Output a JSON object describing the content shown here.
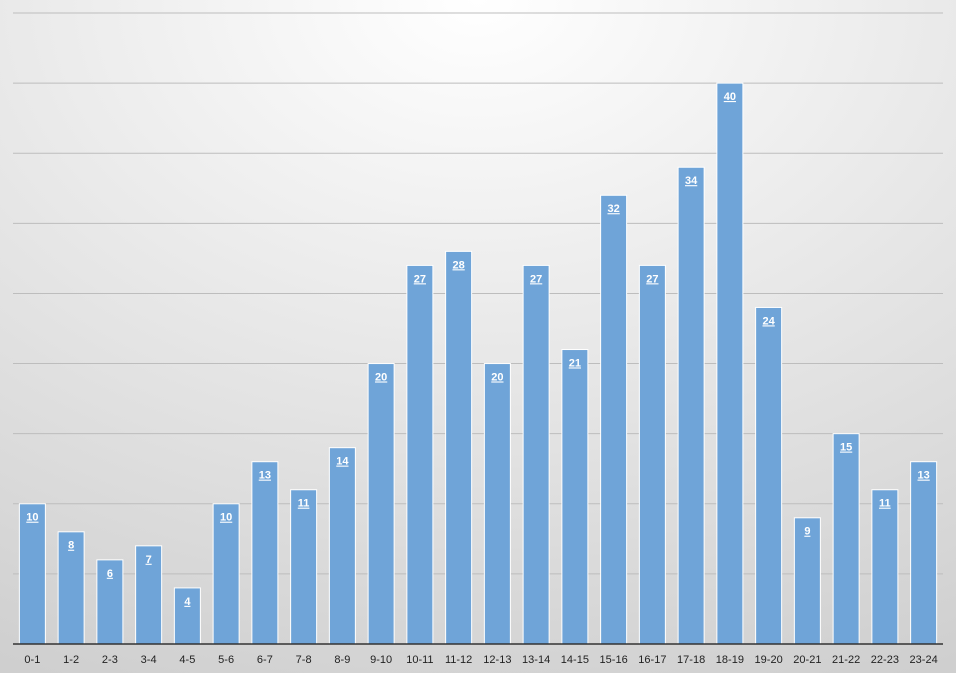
{
  "chart_data": {
    "type": "bar",
    "categories": [
      "0-1",
      "1-2",
      "2-3",
      "3-4",
      "4-5",
      "5-6",
      "6-7",
      "7-8",
      "8-9",
      "9-10",
      "10-11",
      "11-12",
      "12-13",
      "13-14",
      "14-15",
      "15-16",
      "16-17",
      "17-18",
      "18-19",
      "19-20",
      "20-21",
      "21-22",
      "22-23",
      "23-24"
    ],
    "values": [
      10,
      8,
      6,
      7,
      4,
      10,
      13,
      11,
      14,
      20,
      27,
      28,
      20,
      27,
      21,
      32,
      27,
      34,
      40,
      24,
      9,
      15,
      11,
      13
    ],
    "color": "#6fa4d8",
    "ylim": [
      0,
      45
    ],
    "yticks": [
      0,
      5,
      10,
      15,
      20,
      25,
      30,
      35,
      40,
      45
    ],
    "grid": true
  }
}
